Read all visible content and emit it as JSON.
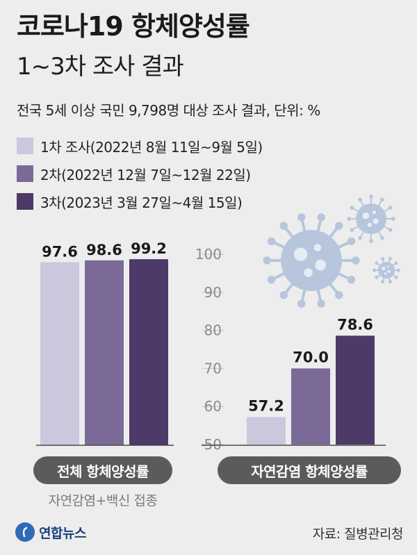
{
  "title": "코로나19 항체양성률",
  "subtitle": "1~3차 조사 결과",
  "note": "전국 5세 이상 국민 9,798명 대상 조사 결과, 단위: %",
  "colors": {
    "round1": "#cdc7dd",
    "round2": "#7b6a98",
    "round3": "#4d3a68"
  },
  "legend": [
    {
      "label": "1차 조사(2022년 8월 11일~9월 5일)",
      "color": "#cdc7dd"
    },
    {
      "label": "2차(2022년 12월 7일~12월 22일)",
      "color": "#7b6a98"
    },
    {
      "label": "3차(2023년 3월 27일~4월 15일)",
      "color": "#4d3a68"
    }
  ],
  "chart_data": [
    {
      "type": "bar",
      "category": "전체 항체양성률",
      "category_note": "자연감염+백신 접종",
      "series": [
        {
          "name": "1차 조사(2022년 8월 11일~9월 5일)",
          "value": 97.6,
          "label": "97.6"
        },
        {
          "name": "2차(2022년 12월 7일~12월 22일)",
          "value": 98.6,
          "label": "98.6"
        },
        {
          "name": "3차(2023년 3월 27일~4월 15일)",
          "value": 99.2,
          "label": "99.2"
        }
      ]
    },
    {
      "type": "bar",
      "category": "자연감염 항체양성률",
      "ylim": [
        50,
        100
      ],
      "yticks": [
        "100",
        "90",
        "80",
        "70",
        "60",
        "50"
      ],
      "series": [
        {
          "name": "1차 조사(2022년 8월 11일~9월 5일)",
          "value": 57.2,
          "label": "57.2"
        },
        {
          "name": "2차(2022년 12월 7일~12월 22일)",
          "value": 70.0,
          "label": "70.0"
        },
        {
          "name": "3차(2023년 3월 27일~4월 15일)",
          "value": 78.6,
          "label": "78.6"
        }
      ]
    }
  ],
  "footer": {
    "logo_text": "연합뉴스",
    "source": "자료: 질병관리청"
  },
  "icons": [
    "virus-icon",
    "logo-icon"
  ]
}
